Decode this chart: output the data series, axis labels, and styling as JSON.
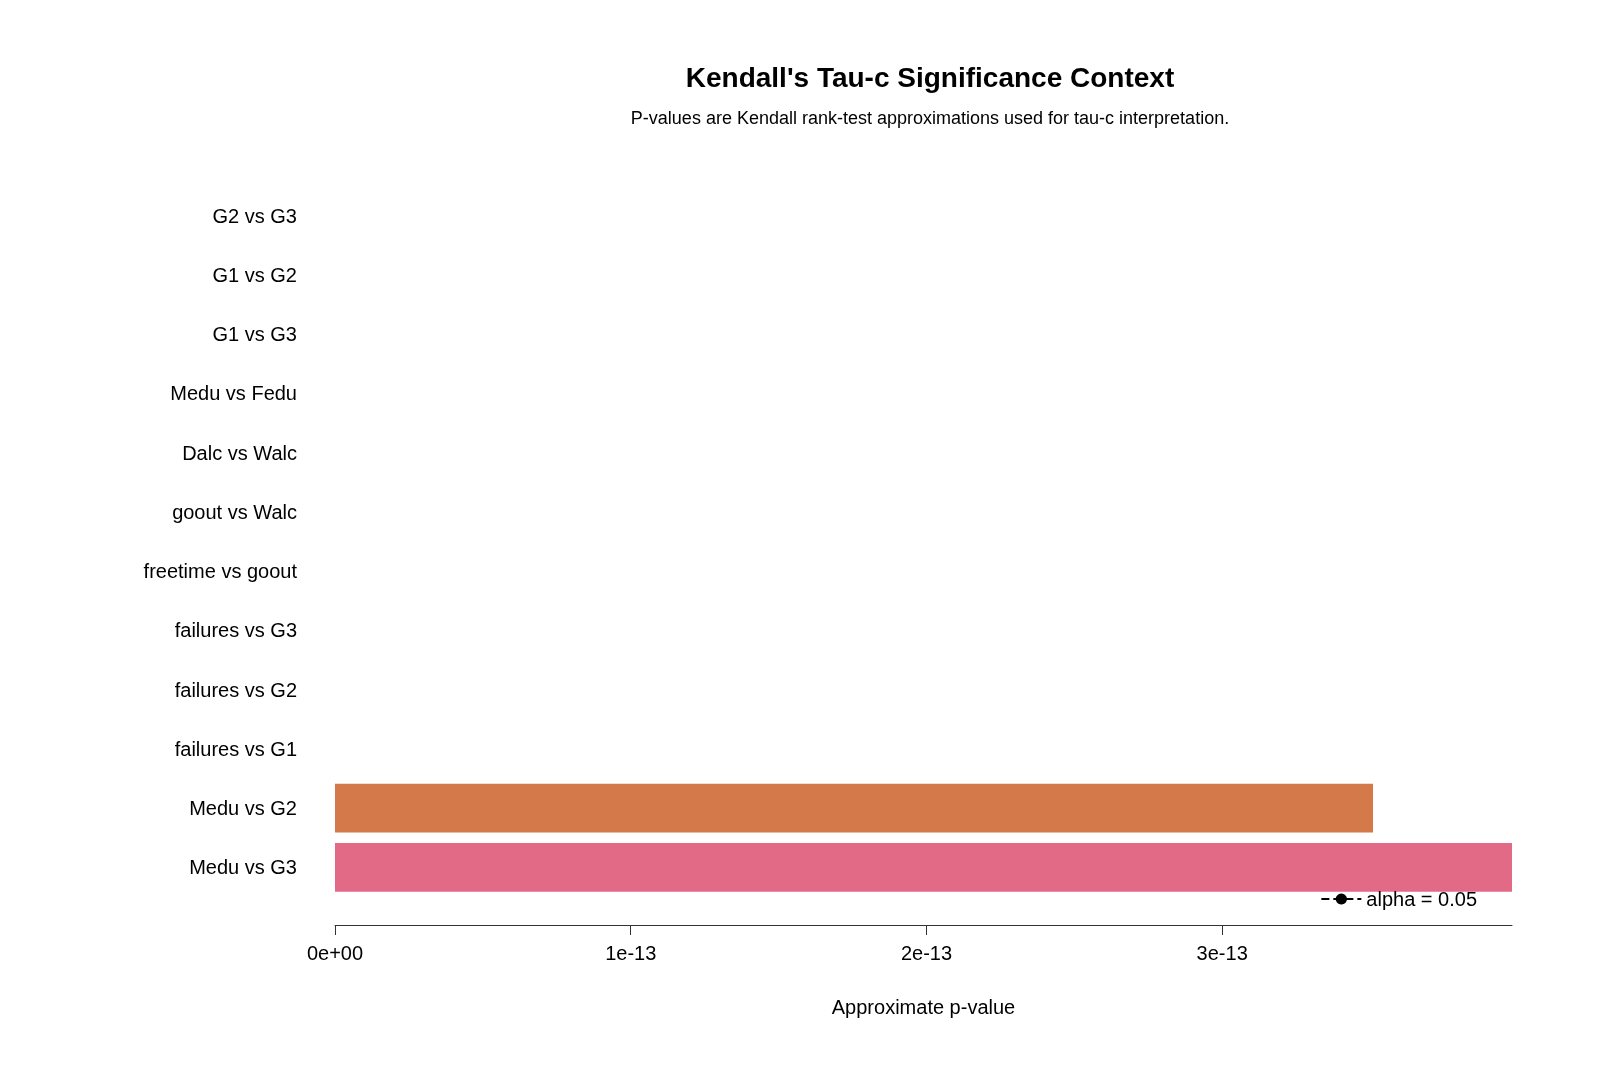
{
  "chart_data": {
    "type": "bar",
    "orientation": "horizontal",
    "title": "Kendall's Tau-c Significance Context",
    "subtitle": "P-values are Kendall rank-test approximations used for tau-c interpretation.",
    "xlabel": "Approximate p-value",
    "categories": [
      "G2 vs G3",
      "G1 vs G2",
      "G1 vs G3",
      "Medu vs Fedu",
      "Dalc vs Walc",
      "goout vs Walc",
      "freetime vs goout",
      "failures vs G3",
      "failures vs G2",
      "failures vs G1",
      "Medu vs G2",
      "Medu vs G3"
    ],
    "series": [
      {
        "values": [
          0,
          0,
          0,
          0,
          0,
          0,
          0,
          0,
          0,
          0,
          3.51e-13,
          3.98e-13
        ],
        "colors": [
          "#4e79a7",
          "#4e79a7",
          "#4e79a7",
          "#59a14f",
          "#76b7b2",
          "#76b7b2",
          "#76b7b2",
          "#af7aa1",
          "#af7aa1",
          "#af7aa1",
          "#d4794a",
          "#e36a86"
        ]
      },
      {
        "type": "line",
        "name": "alpha = 0.05",
        "color": "#000000",
        "line_style": "dashed",
        "values": [
          null,
          null,
          null,
          null,
          null,
          null,
          null,
          null,
          null,
          null,
          null,
          null
        ]
      }
    ],
    "xlim": [
      0,
      3.98e-13
    ],
    "xticks": [
      {
        "value": 0,
        "label": "0e+00"
      },
      {
        "value": 1e-13,
        "label": "1e-13"
      },
      {
        "value": 2e-13,
        "label": "2e-13"
      },
      {
        "value": 3e-13,
        "label": "3e-13"
      }
    ],
    "grid": false,
    "legend": "bottom right"
  }
}
